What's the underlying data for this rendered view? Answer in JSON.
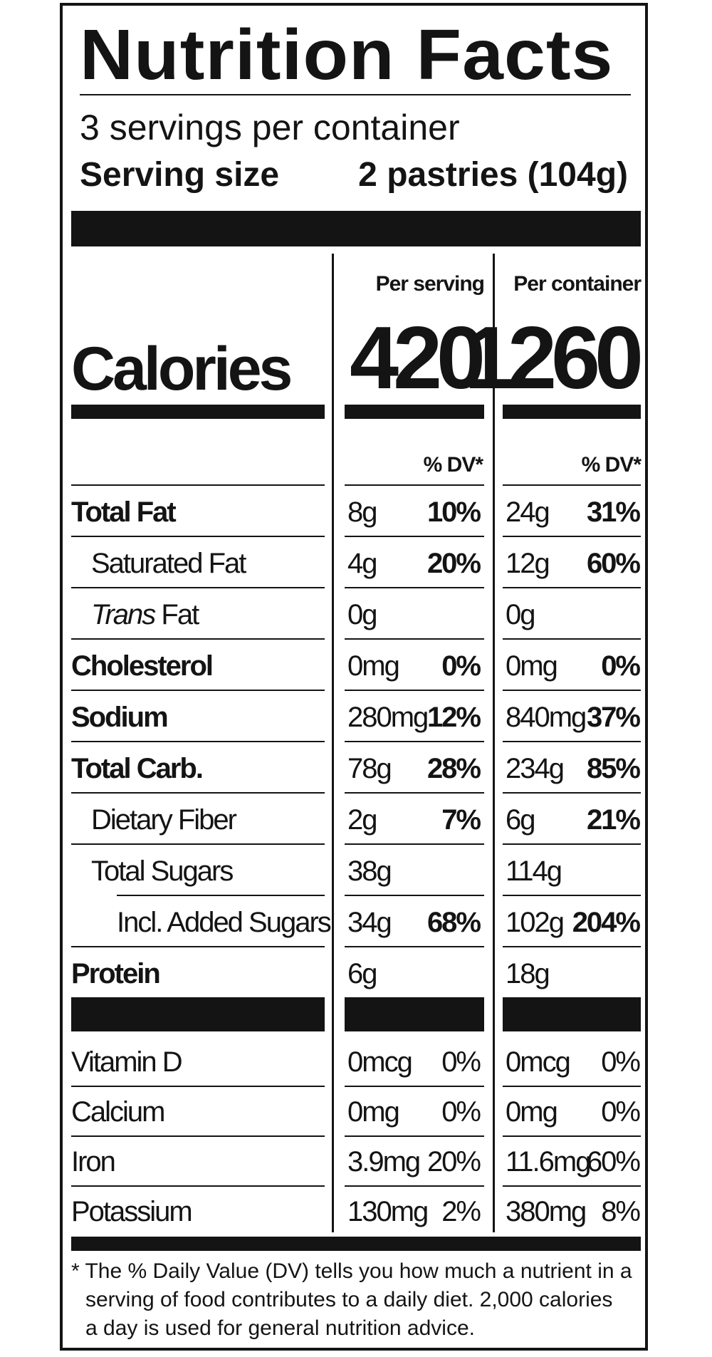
{
  "title": "Nutrition Facts",
  "servings_per_container": "3 servings per container",
  "serving_size_label": "Serving size",
  "serving_size_value": "2 pastries (104g)",
  "per_serving_label": "Per serving",
  "per_container_label": "Per container",
  "calories_label": "Calories",
  "calories_per_serving": "420",
  "calories_per_container": "1260",
  "dv_label": "% DV*",
  "nutrients": [
    {
      "name": "Total Fat",
      "style": "bold",
      "indent": 0,
      "serving_amount": "8g",
      "serving_dv": "10%",
      "container_amount": "24g",
      "container_dv": "31%"
    },
    {
      "name": "Saturated Fat",
      "style": "normal",
      "indent": 1,
      "serving_amount": "4g",
      "serving_dv": "20%",
      "container_amount": "12g",
      "container_dv": "60%"
    },
    {
      "name_italic": "Trans",
      "name": " Fat",
      "style": "normal",
      "indent": 1,
      "serving_amount": "0g",
      "serving_dv": "",
      "container_amount": "0g",
      "container_dv": ""
    },
    {
      "name": "Cholesterol",
      "style": "bold",
      "indent": 0,
      "serving_amount": "0mg",
      "serving_dv": "0%",
      "container_amount": "0mg",
      "container_dv": "0%"
    },
    {
      "name": "Sodium",
      "style": "bold",
      "indent": 0,
      "serving_amount": "280mg",
      "serving_dv": "12%",
      "container_amount": "840mg",
      "container_dv": "37%"
    },
    {
      "name": "Total Carb.",
      "style": "bold",
      "indent": 0,
      "serving_amount": "78g",
      "serving_dv": "28%",
      "container_amount": "234g",
      "container_dv": "85%"
    },
    {
      "name": "Dietary Fiber",
      "style": "normal",
      "indent": 1,
      "serving_amount": "2g",
      "serving_dv": "7%",
      "container_amount": "6g",
      "container_dv": "21%"
    },
    {
      "name": "Total Sugars",
      "style": "normal",
      "indent": 1,
      "serving_amount": "38g",
      "serving_dv": "",
      "container_amount": "114g",
      "container_dv": ""
    },
    {
      "name": "Incl. Added Sugars",
      "style": "normal",
      "indent": 2,
      "serving_amount": "34g",
      "serving_dv": "68%",
      "container_amount": "102g",
      "container_dv": "204%"
    },
    {
      "name": "Protein",
      "style": "bold",
      "indent": 0,
      "serving_amount": "6g",
      "serving_dv": "",
      "container_amount": "18g",
      "container_dv": ""
    }
  ],
  "vitamins": [
    {
      "name": "Vitamin D",
      "serving_amount": "0mcg",
      "serving_dv": "0%",
      "container_amount": "0mcg",
      "container_dv": "0%"
    },
    {
      "name": "Calcium",
      "serving_amount": "0mg",
      "serving_dv": "0%",
      "container_amount": "0mg",
      "container_dv": "0%"
    },
    {
      "name": "Iron",
      "serving_amount": "3.9mg",
      "serving_dv": "20%",
      "container_amount": "11.6mg",
      "container_dv": "60%"
    },
    {
      "name": "Potassium",
      "serving_amount": "130mg",
      "serving_dv": "2%",
      "container_amount": "380mg",
      "container_dv": "8%"
    }
  ],
  "footnote_lines": [
    "* The % Daily Value (DV) tells you how much a nutrient in a",
    "serving of food contributes to a daily diet. 2,000 calories",
    "a day is used for general nutrition advice."
  ]
}
